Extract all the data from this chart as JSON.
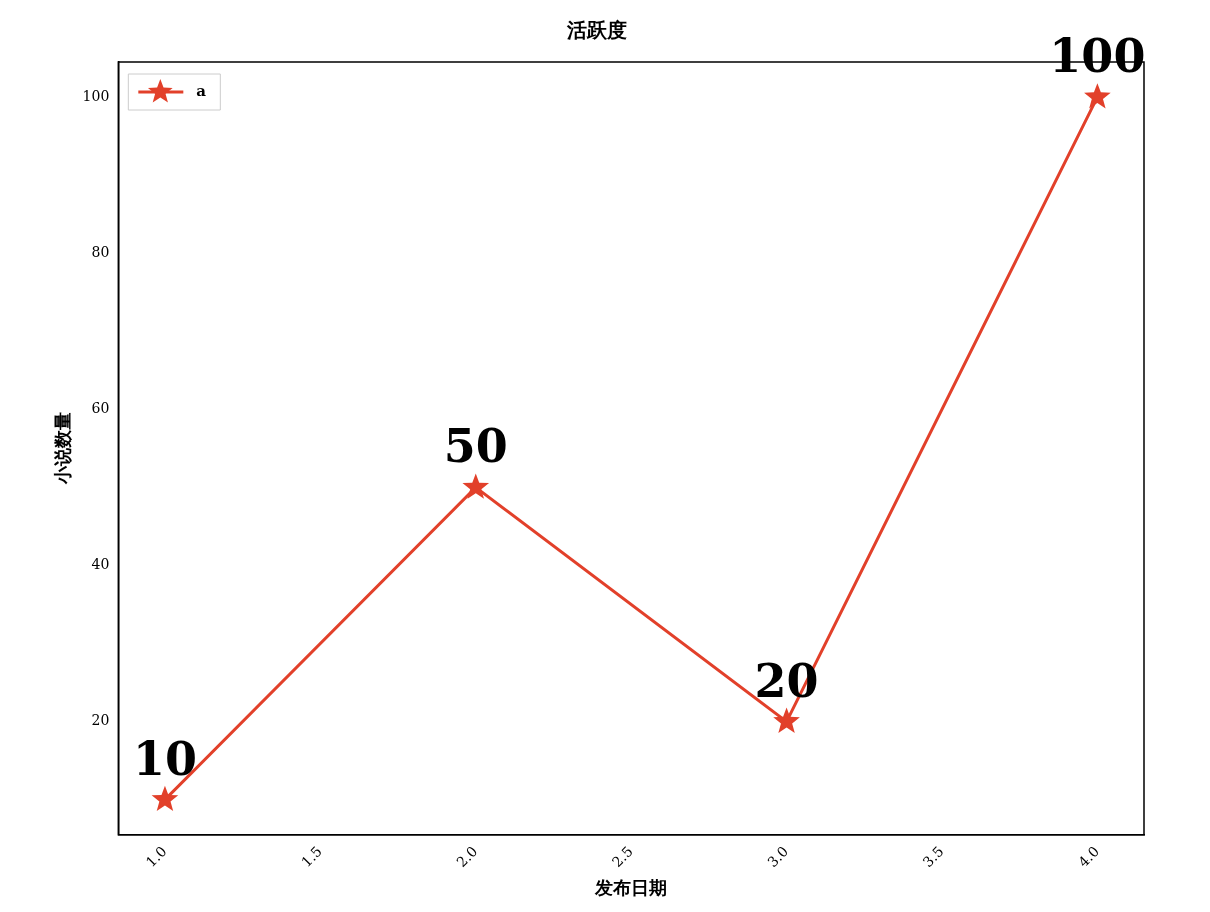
{
  "chart_data": {
    "type": "line",
    "title": "活跃度",
    "xlabel": "发布日期",
    "ylabel": "小说数量",
    "x": [
      1,
      2,
      3,
      4
    ],
    "series": [
      {
        "name": "a",
        "color": "#e2402a",
        "values": [
          10,
          50,
          20,
          100
        ]
      }
    ],
    "xlim": [
      0.85,
      4.15
    ],
    "xticks": [
      {
        "value": 1,
        "label": "1.0"
      },
      {
        "value": 1.5,
        "label": "1.5"
      },
      {
        "value": 2,
        "label": "2.0"
      },
      {
        "value": 2.5,
        "label": "2.5"
      },
      {
        "value": 3,
        "label": "3.0"
      },
      {
        "value": 3.5,
        "label": "3.5"
      },
      {
        "value": 4,
        "label": "4.0"
      }
    ],
    "ylim": [
      5.5,
      104.5
    ],
    "yticks": [
      20,
      40,
      60,
      80,
      100
    ],
    "grid": false,
    "legend": "top left",
    "marker": "star",
    "line_style": "solid",
    "data_labels": true
  }
}
